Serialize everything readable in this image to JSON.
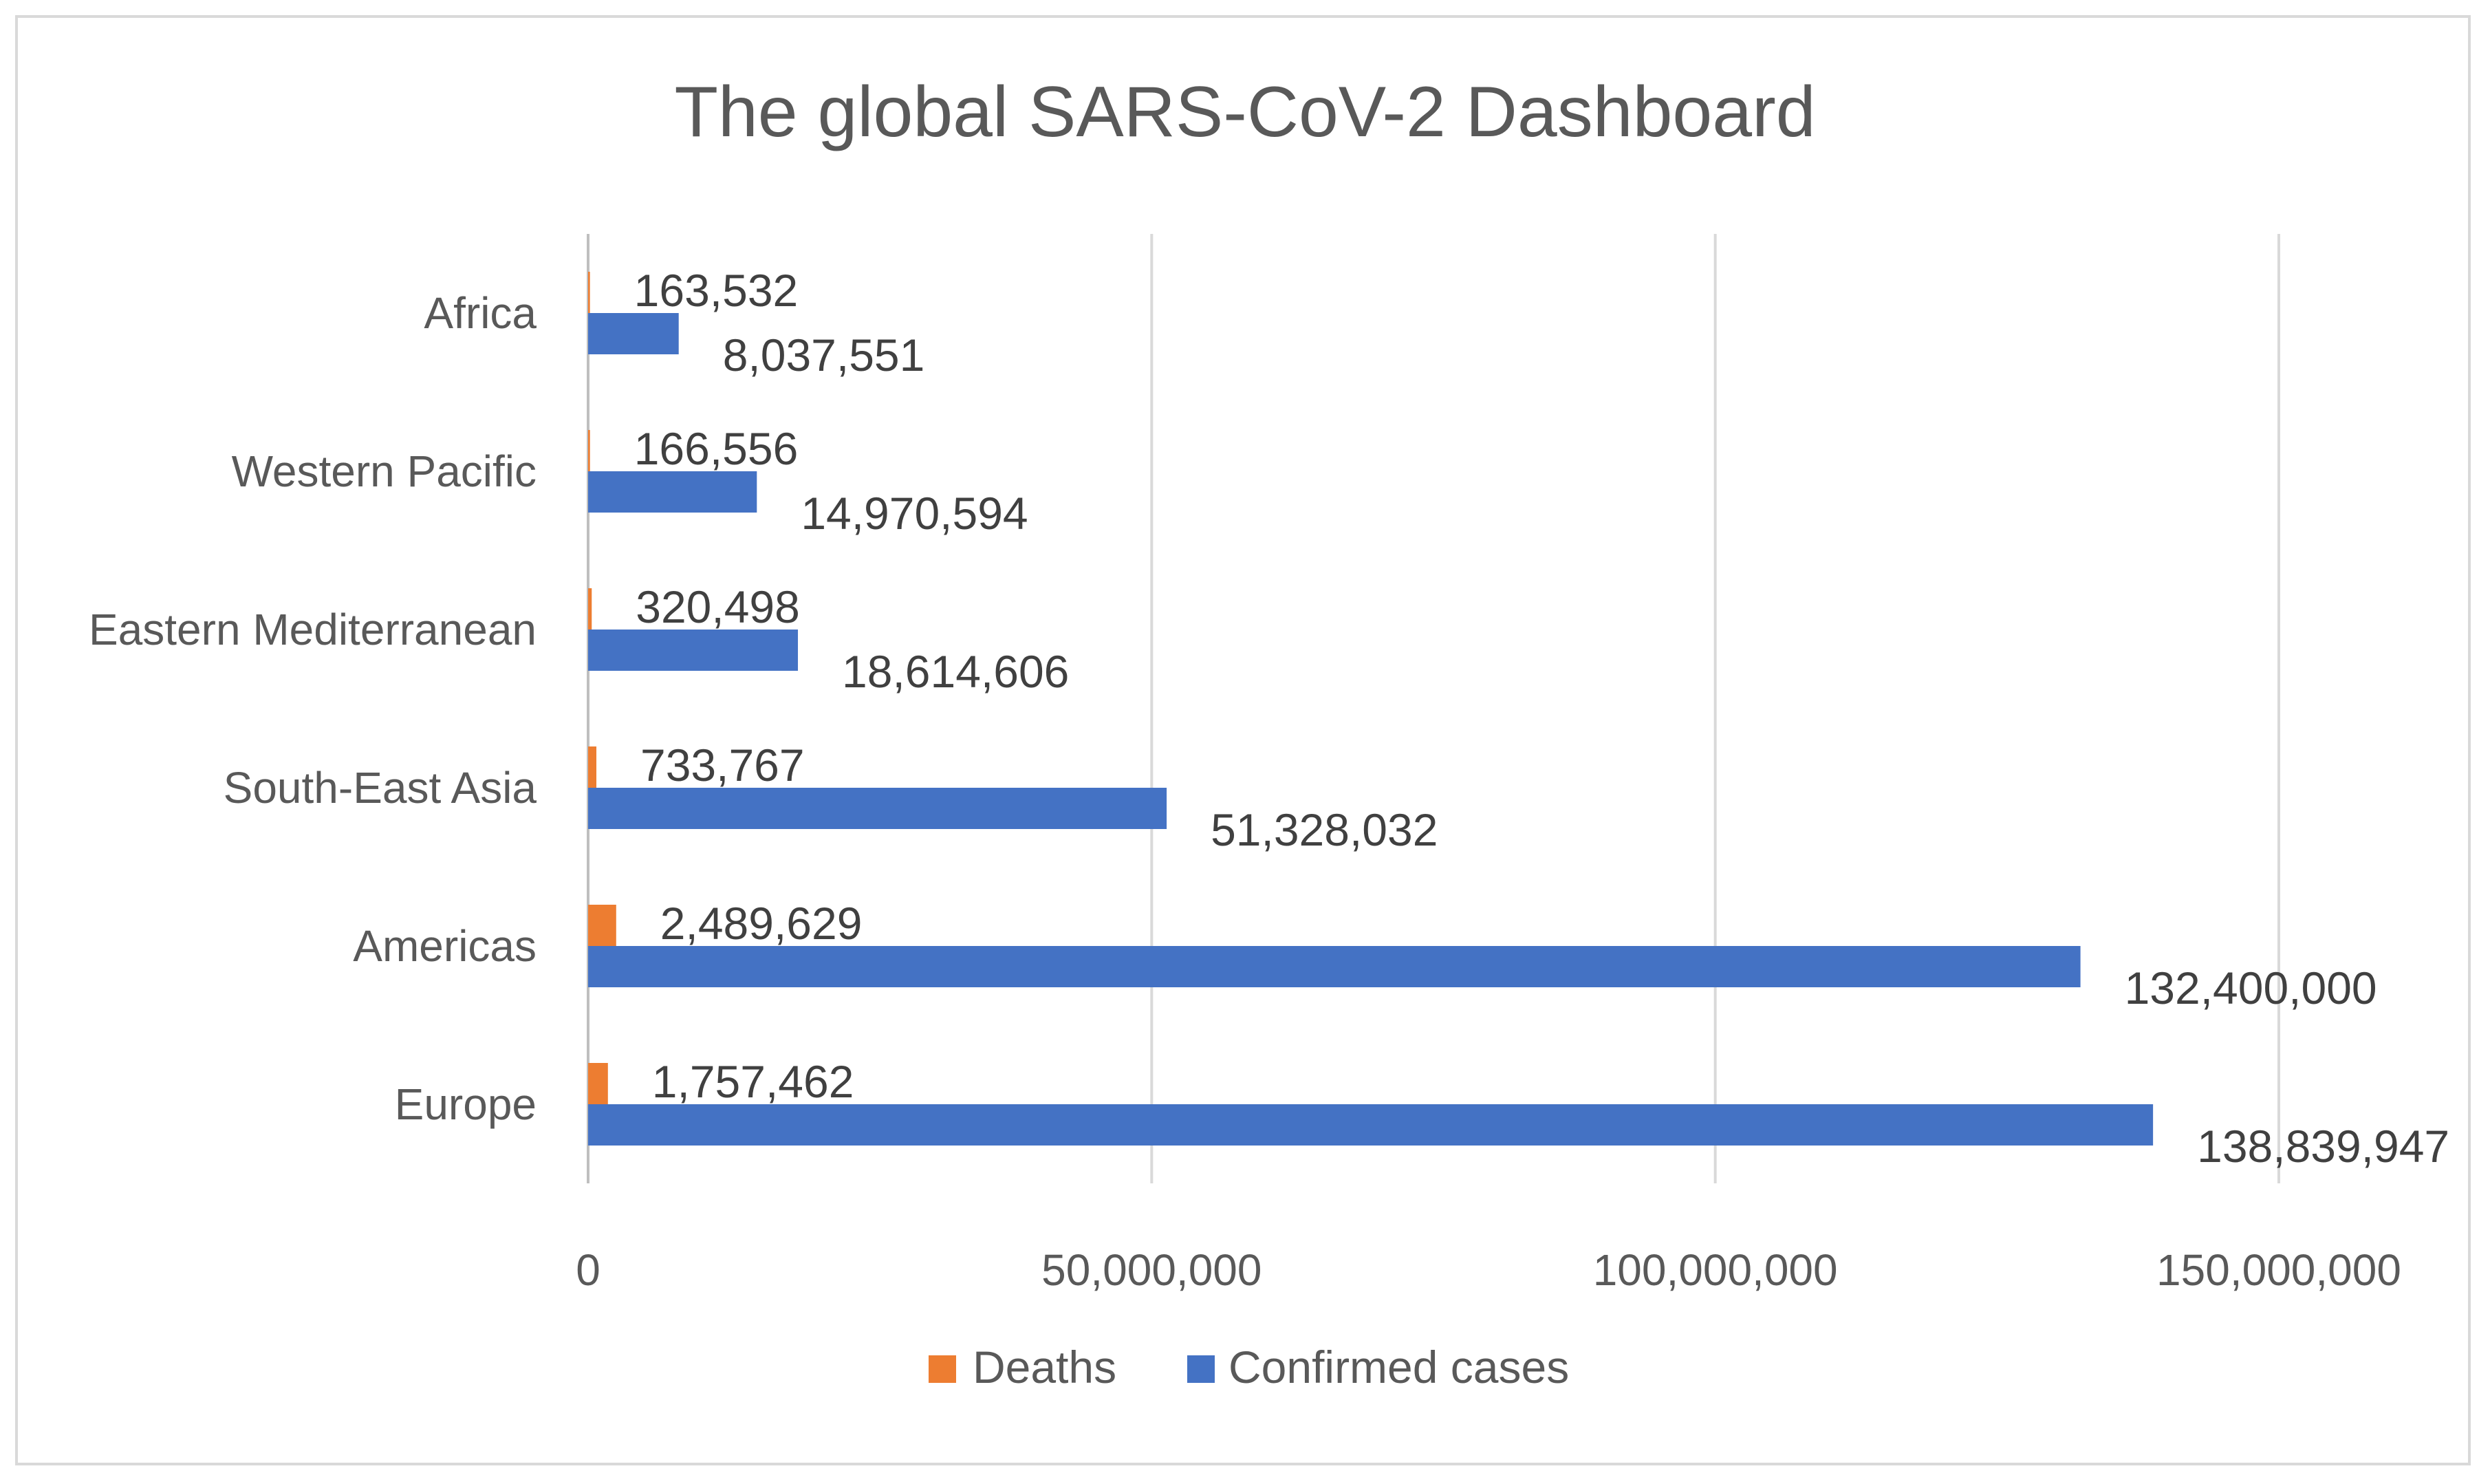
{
  "chart_data": {
    "type": "bar",
    "orientation": "horizontal",
    "title": "The global SARS-CoV-2 Dashboard",
    "categories": [
      "Europe",
      "Americas",
      "South-East Asia",
      "Eastern Mediterranean",
      "Western Pacific",
      "Africa"
    ],
    "series": [
      {
        "name": "Deaths",
        "color": "#ED7D31",
        "values": [
          1757462,
          2489629,
          733767,
          320498,
          166556,
          163532
        ],
        "labels": [
          "1,757,462",
          "2,489,629",
          "733,767",
          "320,498",
          "166,556",
          "163,532"
        ]
      },
      {
        "name": "Confirmed cases",
        "color": "#4472C4",
        "values": [
          138839947,
          132400000,
          51328032,
          18614606,
          14970594,
          8037551
        ],
        "labels": [
          "138,839,947",
          "132,400,000",
          "51,328,032",
          "18,614,606",
          "14,970,594",
          "8,037,551"
        ]
      }
    ],
    "xlim": [
      0,
      150000000
    ],
    "x_ticks": [
      0,
      50000000,
      100000000,
      150000000
    ],
    "x_tick_labels": [
      "0",
      "50,000,000",
      "100,000,000",
      "150,000,000"
    ],
    "grid": true,
    "legend_position": "bottom"
  }
}
